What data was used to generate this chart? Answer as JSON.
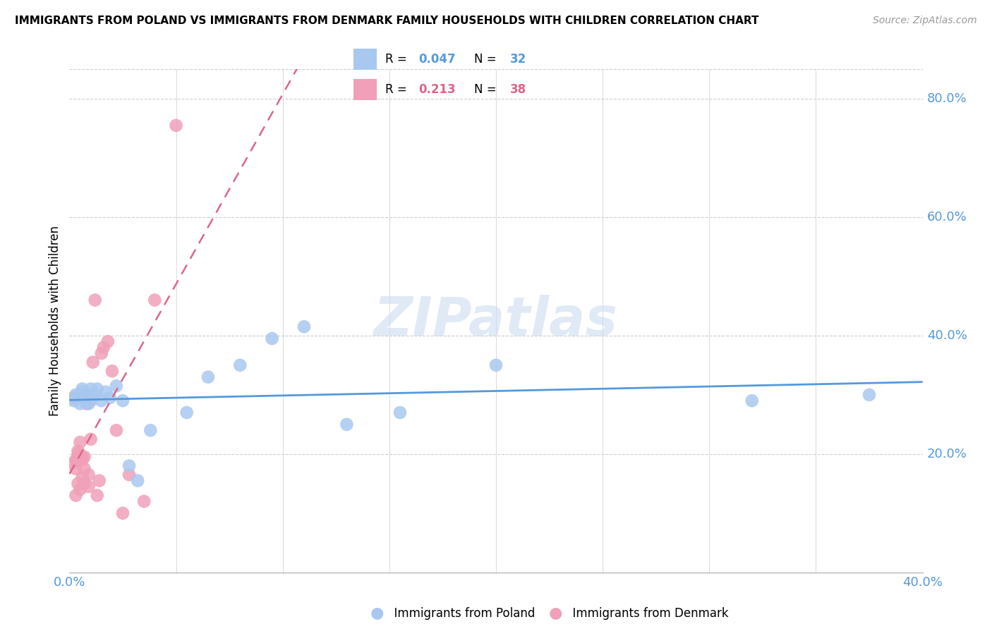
{
  "title": "IMMIGRANTS FROM POLAND VS IMMIGRANTS FROM DENMARK FAMILY HOUSEHOLDS WITH CHILDREN CORRELATION CHART",
  "source": "Source: ZipAtlas.com",
  "ylabel": "Family Households with Children",
  "xlim": [
    0.0,
    0.4
  ],
  "ylim": [
    0.0,
    0.85
  ],
  "x_ticks": [
    0.0,
    0.05,
    0.1,
    0.15,
    0.2,
    0.25,
    0.3,
    0.35,
    0.4
  ],
  "y_ticks_right": [
    0.2,
    0.4,
    0.6,
    0.8
  ],
  "y_tick_labels_right": [
    "20.0%",
    "40.0%",
    "60.0%",
    "80.0%"
  ],
  "poland_R": 0.047,
  "poland_N": 32,
  "denmark_R": 0.213,
  "denmark_N": 38,
  "poland_color": "#a8c8f0",
  "denmark_color": "#f0a0b8",
  "poland_line_color": "#5599dd",
  "denmark_line_color": "#dd6688",
  "grid_color": "#cccccc",
  "watermark": "ZIPatlas",
  "poland_x": [
    0.002,
    0.003,
    0.004,
    0.005,
    0.006,
    0.006,
    0.007,
    0.008,
    0.008,
    0.009,
    0.01,
    0.011,
    0.012,
    0.013,
    0.015,
    0.017,
    0.019,
    0.022,
    0.025,
    0.028,
    0.032,
    0.038,
    0.055,
    0.065,
    0.08,
    0.095,
    0.11,
    0.13,
    0.155,
    0.2,
    0.32,
    0.375
  ],
  "poland_y": [
    0.29,
    0.3,
    0.295,
    0.285,
    0.305,
    0.31,
    0.295,
    0.29,
    0.3,
    0.285,
    0.31,
    0.295,
    0.3,
    0.31,
    0.29,
    0.305,
    0.295,
    0.315,
    0.29,
    0.18,
    0.155,
    0.24,
    0.27,
    0.33,
    0.35,
    0.395,
    0.415,
    0.25,
    0.27,
    0.35,
    0.29,
    0.3
  ],
  "denmark_x": [
    0.002,
    0.002,
    0.003,
    0.003,
    0.003,
    0.004,
    0.004,
    0.004,
    0.005,
    0.005,
    0.005,
    0.006,
    0.006,
    0.006,
    0.007,
    0.007,
    0.007,
    0.008,
    0.008,
    0.008,
    0.009,
    0.009,
    0.01,
    0.01,
    0.011,
    0.012,
    0.013,
    0.014,
    0.015,
    0.016,
    0.018,
    0.02,
    0.022,
    0.025,
    0.028,
    0.035,
    0.04,
    0.05
  ],
  "denmark_y": [
    0.295,
    0.185,
    0.175,
    0.19,
    0.13,
    0.2,
    0.205,
    0.15,
    0.195,
    0.22,
    0.14,
    0.19,
    0.195,
    0.16,
    0.195,
    0.175,
    0.15,
    0.285,
    0.29,
    0.3,
    0.145,
    0.165,
    0.225,
    0.29,
    0.355,
    0.46,
    0.13,
    0.155,
    0.37,
    0.38,
    0.39,
    0.34,
    0.24,
    0.1,
    0.165,
    0.12,
    0.46,
    0.755
  ]
}
